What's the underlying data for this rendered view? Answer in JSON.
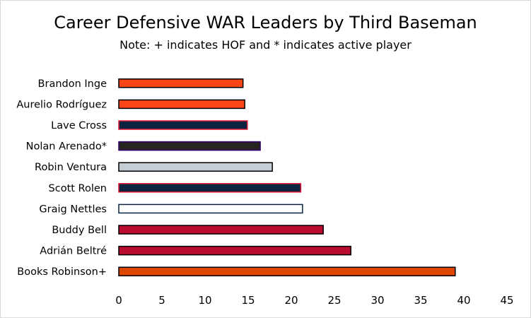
{
  "chart_data": {
    "type": "bar",
    "orientation": "horizontal",
    "title": "Career Defensive WAR Leaders by Third Baseman",
    "subtitle": "Note: + indicates HOF and * indicates active player",
    "categories": [
      "Brandon Inge",
      "Aurelio Rodríguez",
      "Lave Cross",
      "Nolan Arenado*",
      "Robin Ventura",
      "Scott Rolen",
      "Graig Nettles",
      "Buddy Bell",
      "Adrián Beltré",
      "Books Robinson+"
    ],
    "values": [
      14.4,
      14.6,
      14.9,
      16.4,
      17.8,
      21.1,
      21.3,
      23.7,
      26.9,
      39.0
    ],
    "bar_fill": [
      "#fa4616",
      "#fa4616",
      "#0c2340",
      "#27251f",
      "#c4ced4",
      "#0c2340",
      "#ffffff",
      "#ba0c2f",
      "#ba0c2f",
      "#df4601"
    ],
    "bar_stroke": [
      "#000000",
      "#000000",
      "#e31937",
      "#33006f",
      "#000000",
      "#e31937",
      "#0c2340",
      "#000000",
      "#000000",
      "#000000"
    ],
    "xlim": [
      0,
      45
    ],
    "xticks": [
      0,
      5,
      10,
      15,
      20,
      25,
      30,
      35,
      40,
      45
    ],
    "xlabel": "",
    "ylabel": "",
    "grid": false,
    "legend": "none"
  }
}
